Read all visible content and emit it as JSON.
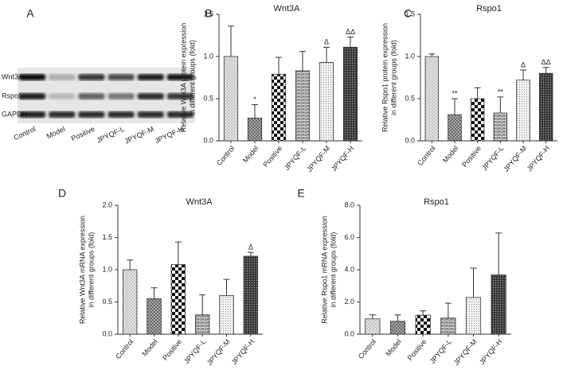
{
  "chart_data": [
    {
      "type": "blot",
      "panel": "A",
      "rows": [
        "Wnt3A",
        "Rspo1",
        "GAPDH"
      ],
      "categories": [
        "Control",
        "Model",
        "Positive",
        "JPYQF-L",
        "JPYQF-M",
        "JPYQF-H"
      ]
    },
    {
      "type": "bar",
      "panel": "B",
      "title": "Wnt3A",
      "ylabel": [
        "Relative Wnt3A protein expression",
        "in different groups (fold)"
      ],
      "categories": [
        "Control",
        "Model",
        "Positive",
        "JPYQF-L",
        "JPYQF-M",
        "JPYQF-H"
      ],
      "values": [
        1.0,
        0.27,
        0.79,
        0.83,
        0.93,
        1.11
      ],
      "errors": [
        0.36,
        0.16,
        0.2,
        0.23,
        0.18,
        0.12
      ],
      "annotations": [
        null,
        "*",
        null,
        null,
        "Δ",
        "ΔΔ"
      ],
      "ylim": [
        0,
        1.5
      ],
      "yticks": [
        {
          "value": 0,
          "label": "0.0"
        },
        0.5,
        {
          "value": 1,
          "label": "1.0"
        },
        1.5
      ]
    },
    {
      "type": "bar",
      "panel": "C",
      "title": "Rspo1",
      "ylabel": [
        "Relative Rspo1 protein expression",
        "in different groups (fold)"
      ],
      "categories": [
        "Control",
        "Model",
        "Positive",
        "JPYQF-L",
        "JPYQF-M",
        "JPYQF-H"
      ],
      "values": [
        1.0,
        0.31,
        0.5,
        0.33,
        0.72,
        0.8
      ],
      "errors": [
        0.03,
        0.19,
        0.13,
        0.19,
        0.12,
        0.07
      ],
      "annotations": [
        null,
        "**",
        null,
        "**",
        "Δ",
        "ΔΔ"
      ],
      "ylim": [
        0,
        1.5
      ],
      "yticks": [
        {
          "value": 0,
          "label": "0.0"
        },
        0.5,
        {
          "value": 1,
          "label": "1.0"
        },
        1.5
      ]
    },
    {
      "type": "bar",
      "panel": "D",
      "title": "Wnt3A",
      "ylabel": [
        "Relative Wnt3A mRNA expression",
        "in different groups (fold)"
      ],
      "categories": [
        "Control",
        "Model",
        "Positive",
        "JPYQF-L",
        "JPYQF-M",
        "JPYQF-H"
      ],
      "values": [
        1.0,
        0.55,
        1.08,
        0.3,
        0.6,
        1.21
      ],
      "errors": [
        0.15,
        0.17,
        0.35,
        0.31,
        0.25,
        0.06
      ],
      "annotations": [
        null,
        null,
        null,
        null,
        null,
        "Δ"
      ],
      "ylim": [
        0,
        2.0
      ],
      "yticks": [
        {
          "value": 0,
          "label": "0.0"
        },
        0.5,
        {
          "value": 1,
          "label": "1.0"
        },
        1.5,
        {
          "value": 2,
          "label": "2.0"
        }
      ]
    },
    {
      "type": "bar",
      "panel": "E",
      "title": "Rspo1",
      "ylabel": [
        "Relative Rspo1 mRNA expression",
        "in different groups (fold)"
      ],
      "categories": [
        "Control",
        "Model",
        "Positive",
        "JPYQF-L",
        "JPYQF-M",
        "JPYQF-H"
      ],
      "values": [
        0.95,
        0.8,
        1.18,
        1.0,
        2.28,
        3.68
      ],
      "errors": [
        0.25,
        0.4,
        0.27,
        0.92,
        1.82,
        2.6
      ],
      "annotations": [
        null,
        null,
        null,
        null,
        null,
        null
      ],
      "ylim": [
        0,
        8.0
      ],
      "yticks": [
        {
          "value": 0,
          "label": "0.0"
        },
        {
          "value": 2,
          "label": "2.0"
        },
        {
          "value": 4,
          "label": "4.0"
        },
        {
          "value": 6,
          "label": "6.0"
        },
        {
          "value": 8,
          "label": "8.0"
        }
      ]
    }
  ]
}
